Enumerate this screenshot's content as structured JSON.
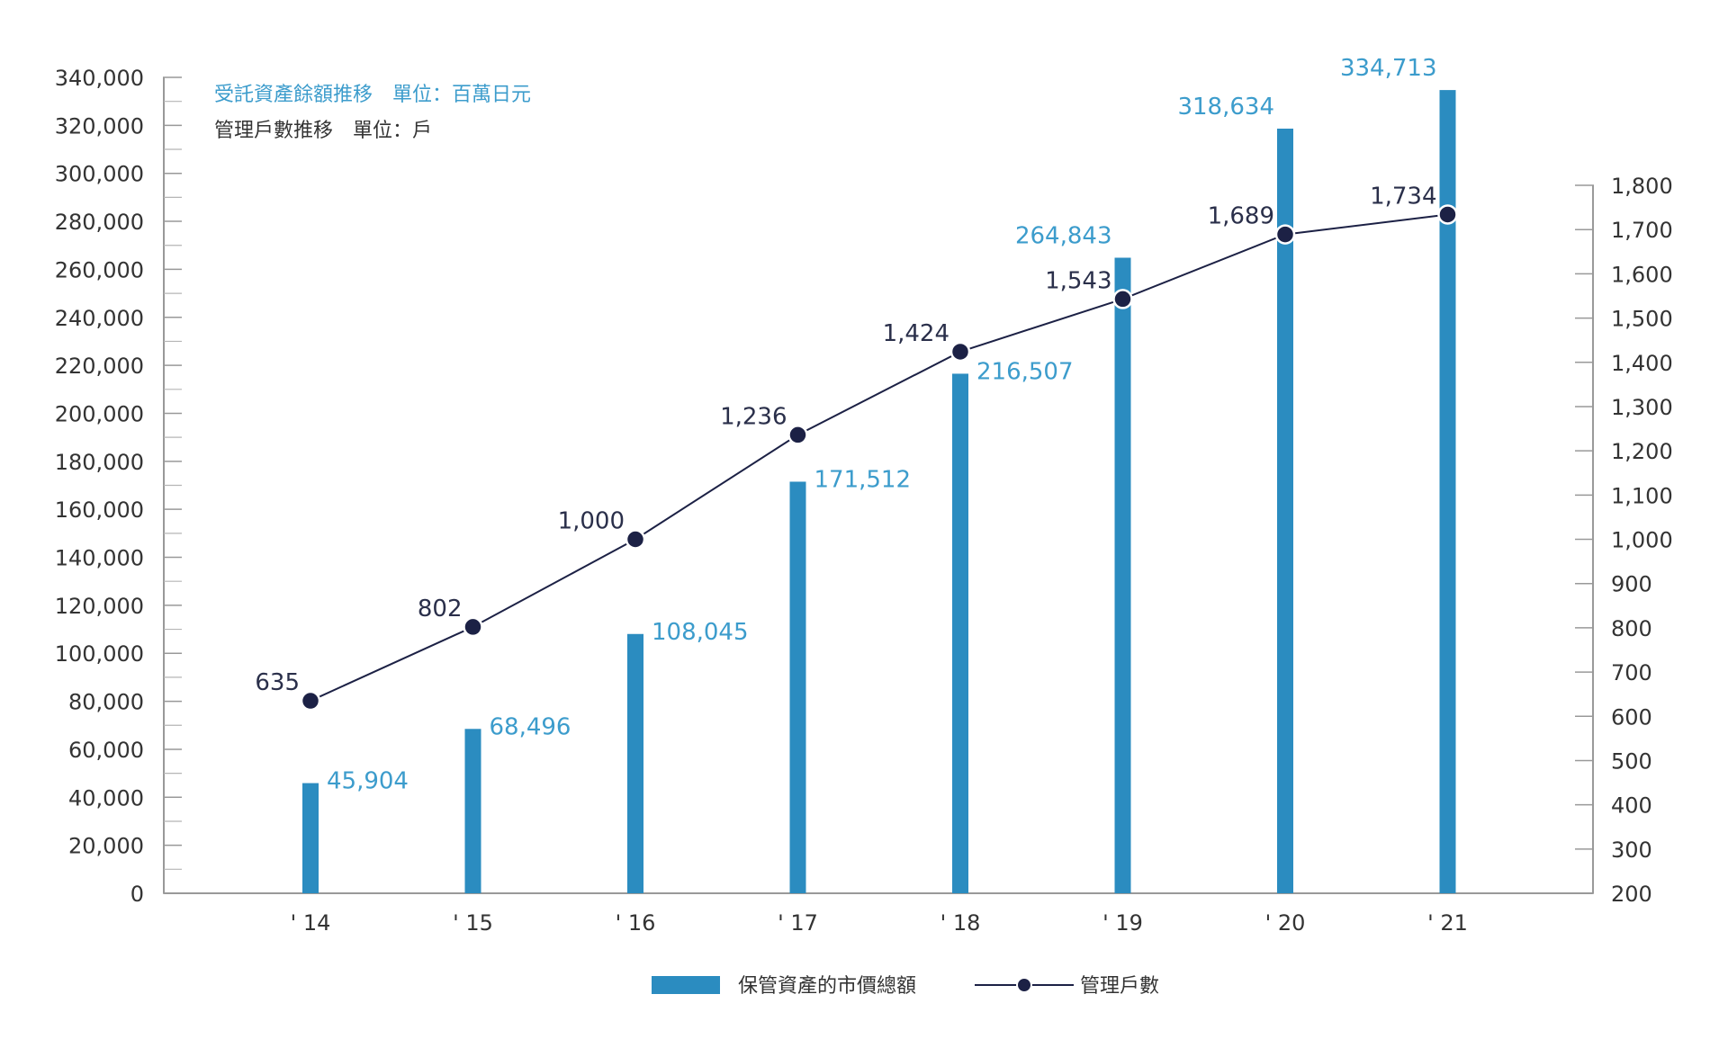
{
  "chart_data": {
    "type": "bar",
    "categories": [
      "' 14",
      "' 15",
      "' 16",
      "' 17",
      "' 18",
      "' 19",
      "' 20",
      "' 21"
    ],
    "series": [
      {
        "name": "保管資產的市價總額",
        "type": "bar",
        "axis": "left",
        "values": [
          45904,
          68496,
          108045,
          171512,
          216507,
          264843,
          318634,
          334713
        ],
        "labels": [
          "45,904",
          "68,496",
          "108,045",
          "171,512",
          "216,507",
          "264,843",
          "318,634",
          "334,713"
        ]
      },
      {
        "name": "管理戶數",
        "type": "line",
        "axis": "right",
        "values": [
          635,
          802,
          1000,
          1236,
          1424,
          1543,
          1689,
          1734
        ],
        "labels": [
          "635",
          "802",
          "1,000",
          "1,236",
          "1,424",
          "1,543",
          "1,689",
          "1,734"
        ]
      }
    ],
    "annotations": [
      "受託資產餘額推移　單位：百萬日元",
      "管理戶數推移　單位：戶"
    ],
    "left_axis": {
      "range": [
        0,
        340000
      ],
      "ticks": [
        0,
        20000,
        40000,
        60000,
        80000,
        100000,
        120000,
        140000,
        160000,
        180000,
        200000,
        220000,
        240000,
        260000,
        280000,
        300000,
        320000,
        340000
      ],
      "tick_labels": [
        "0",
        "20,000",
        "40,000",
        "60,000",
        "80,000",
        "100,000",
        "120,000",
        "140,000",
        "160,000",
        "180,000",
        "200,000",
        "220,000",
        "240,000",
        "260,000",
        "280,000",
        "300,000",
        "320,000",
        "340,000"
      ]
    },
    "right_axis": {
      "range": [
        200,
        1800
      ],
      "ticks": [
        200,
        300,
        400,
        500,
        600,
        700,
        800,
        900,
        1000,
        1100,
        1200,
        1300,
        1400,
        1500,
        1600,
        1700,
        1800
      ],
      "tick_labels": [
        "200",
        "300",
        "400",
        "500",
        "600",
        "700",
        "800",
        "900",
        "1,000",
        "1,100",
        "1,200",
        "1,300",
        "1,400",
        "1,500",
        "1,600",
        "1,700",
        "1,800"
      ]
    },
    "grid": false,
    "legend_position": "bottom-center",
    "colors": {
      "bar": "#2b8cc0",
      "bar_label": "#3c9ccc",
      "line": "#1c2145",
      "marker_fill": "#1c2145",
      "marker_stroke": "#ffffff",
      "line_label": "#2a2f4a",
      "axis": "#999999",
      "tick_label": "#333333",
      "annotation_blue": "#3c9ccc",
      "annotation_dark": "#333333"
    }
  }
}
